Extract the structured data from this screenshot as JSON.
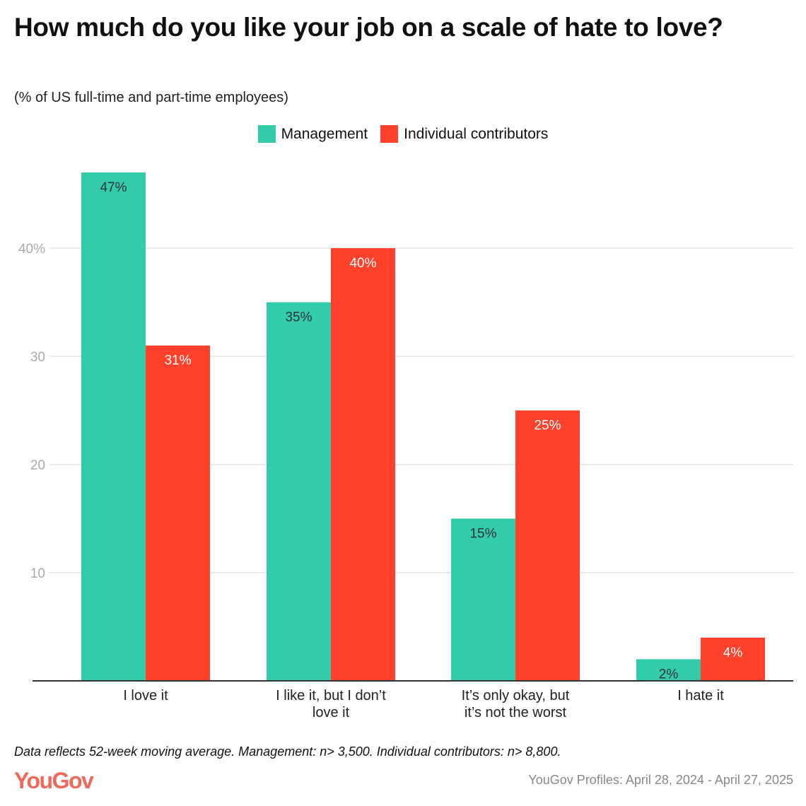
{
  "chart_data": {
    "type": "bar",
    "title": "How much do you like your job on a scale of hate to love?",
    "subtitle": "(% of US full-time and part-time employees)",
    "categories": [
      "I love it",
      "I like it, but I don’t love it",
      "It’s only okay, but it’s not the worst",
      "I hate it"
    ],
    "series": [
      {
        "name": "Management",
        "values": [
          47,
          35,
          15,
          2
        ],
        "color": "#33CCAA",
        "label_color": "#333333"
      },
      {
        "name": "Individual contributors",
        "values": [
          31,
          40,
          25,
          4
        ],
        "color": "#FF412C",
        "label_color": "#ffffff"
      }
    ],
    "yticks": [
      "",
      "10",
      "20",
      "30",
      "40%"
    ],
    "ylim": [
      0,
      47
    ],
    "grid": true,
    "legend": "top-center",
    "xlabel": "",
    "ylabel": ""
  },
  "note": "Data reflects 52-week moving average. Management: n> 3,500. Individual contributors: n> 8,800.",
  "logo": "YouGov",
  "source": "YouGov Profiles: April 28, 2024 - April 27, 2025"
}
